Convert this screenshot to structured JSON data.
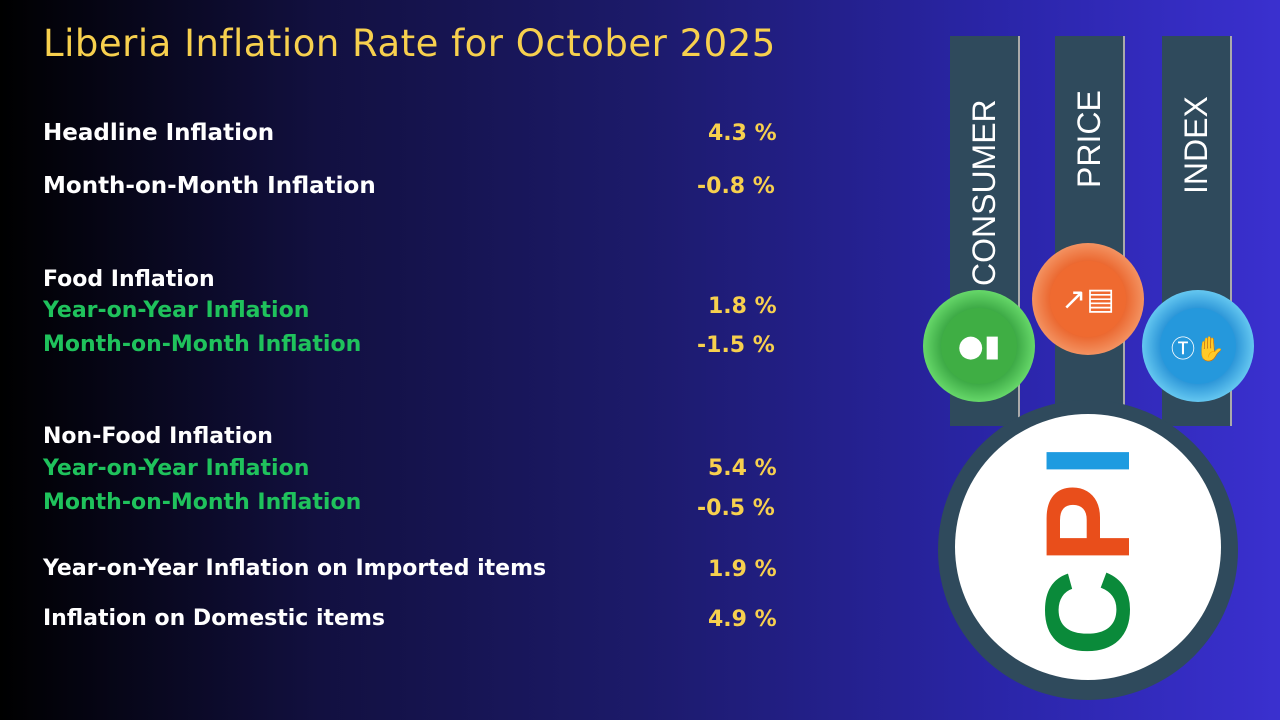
{
  "title": "Liberia Inflation Rate for October 2025",
  "rows": {
    "headline": {
      "label": "Headline Inflation",
      "value": "4.3 %"
    },
    "mom": {
      "label": "Month-on-Month Inflation",
      "value": "-0.8 %"
    },
    "food": {
      "heading": "Food Inflation",
      "yoy_label": "Year-on-Year Inflation",
      "yoy_value": "1.8 %",
      "mom_label": "Month-on-Month Inflation",
      "mom_value": "-1.5 %"
    },
    "nonfood": {
      "heading": "Non-Food Inflation",
      "yoy_label": "Year-on-Year Inflation",
      "yoy_value": "5.4 %",
      "mom_label": "Month-on-Month Inflation",
      "mom_value": "-0.5 %"
    },
    "imported": {
      "label": "Year-on-Year Inflation on Imported items",
      "value": "1.9 %"
    },
    "domestic": {
      "label": "Inflation on Domestic items",
      "value": "4.9 %"
    }
  },
  "graphic": {
    "bars": [
      "CONSUMER",
      "PRICE",
      "INDEX"
    ],
    "logo": [
      "C",
      "P",
      "I"
    ],
    "colors": {
      "green": "#3bb54a",
      "orange": "#f0612a",
      "blue": "#2ba3e0",
      "logo_c": "#0a8a3a",
      "logo_p": "#e94e1b",
      "logo_i": "#1e9be0"
    },
    "icons": [
      "consumer-person-icon",
      "price-chart-icon",
      "money-hand-icon"
    ]
  }
}
